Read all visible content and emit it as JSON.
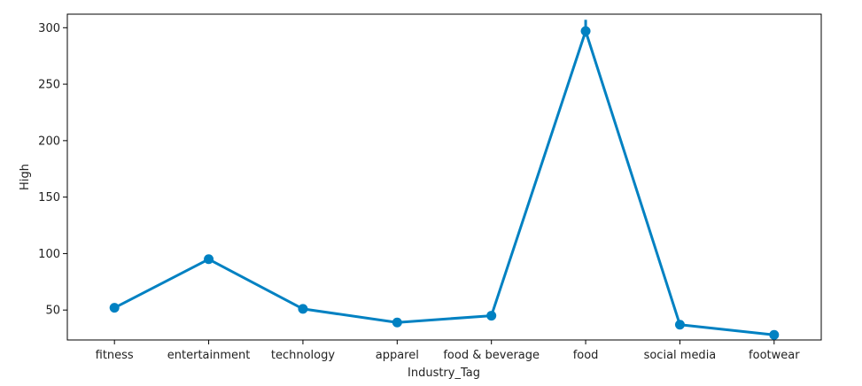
{
  "chart_data": {
    "type": "line",
    "title": "",
    "xlabel": "Industry_Tag",
    "ylabel": "High",
    "categories": [
      "fitness",
      "entertainment",
      "technology",
      "apparel",
      "food & beverage",
      "food",
      "social media",
      "footwear"
    ],
    "series": [
      {
        "values": [
          52,
          95,
          51,
          39,
          45,
          297,
          37,
          28
        ],
        "error_low": [
          52,
          95,
          51,
          39,
          45,
          292,
          37,
          28
        ],
        "error_high": [
          52,
          95,
          51,
          39,
          45,
          307,
          37,
          28
        ]
      }
    ],
    "ylim": [
      23.5,
      312
    ],
    "yticks": [
      50,
      100,
      150,
      200,
      250,
      300
    ],
    "grid": false,
    "color": "#0081c2"
  }
}
